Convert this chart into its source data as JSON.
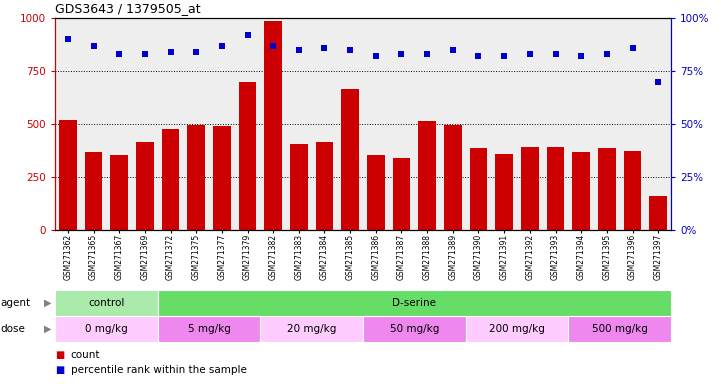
{
  "title": "GDS3643 / 1379505_at",
  "samples": [
    "GSM271362",
    "GSM271365",
    "GSM271367",
    "GSM271369",
    "GSM271372",
    "GSM271375",
    "GSM271377",
    "GSM271379",
    "GSM271382",
    "GSM271383",
    "GSM271384",
    "GSM271385",
    "GSM271386",
    "GSM271387",
    "GSM271388",
    "GSM271389",
    "GSM271390",
    "GSM271391",
    "GSM271392",
    "GSM271393",
    "GSM271394",
    "GSM271395",
    "GSM271396",
    "GSM271397"
  ],
  "counts": [
    520,
    370,
    355,
    415,
    475,
    495,
    490,
    700,
    985,
    405,
    415,
    665,
    355,
    340,
    515,
    495,
    385,
    360,
    390,
    390,
    370,
    385,
    375,
    160
  ],
  "percentile_ranks": [
    90,
    87,
    83,
    83,
    84,
    84,
    87,
    92,
    87,
    85,
    86,
    85,
    82,
    83,
    83,
    85,
    82,
    82,
    83,
    83,
    82,
    83,
    86,
    70
  ],
  "bar_color": "#cc0000",
  "dot_color": "#0000cc",
  "left_yaxis_color": "#cc0000",
  "right_yaxis_color": "#0000cc",
  "ylim_left": [
    0,
    1000
  ],
  "ylim_right": [
    0,
    100
  ],
  "yticks_left": [
    0,
    250,
    500,
    750,
    1000
  ],
  "yticks_right": [
    0,
    25,
    50,
    75,
    100
  ],
  "agent_groups": [
    {
      "label": "control",
      "color": "#aaeaaa",
      "start": 0,
      "end": 4
    },
    {
      "label": "D-serine",
      "color": "#66dd66",
      "start": 4,
      "end": 24
    }
  ],
  "dose_groups": [
    {
      "label": "0 mg/kg",
      "color": "#ffccff",
      "start": 0,
      "end": 4
    },
    {
      "label": "5 mg/kg",
      "color": "#ee88ee",
      "start": 4,
      "end": 8
    },
    {
      "label": "20 mg/kg",
      "color": "#ffccff",
      "start": 8,
      "end": 12
    },
    {
      "label": "50 mg/kg",
      "color": "#ee88ee",
      "start": 12,
      "end": 16
    },
    {
      "label": "200 mg/kg",
      "color": "#ffccff",
      "start": 16,
      "end": 20
    },
    {
      "label": "500 mg/kg",
      "color": "#ee88ee",
      "start": 20,
      "end": 24
    }
  ],
  "legend_count_color": "#cc0000",
  "legend_dot_color": "#0000cc",
  "chart_bg": "#eeeeee",
  "dotted_lines": [
    250,
    500,
    750
  ]
}
